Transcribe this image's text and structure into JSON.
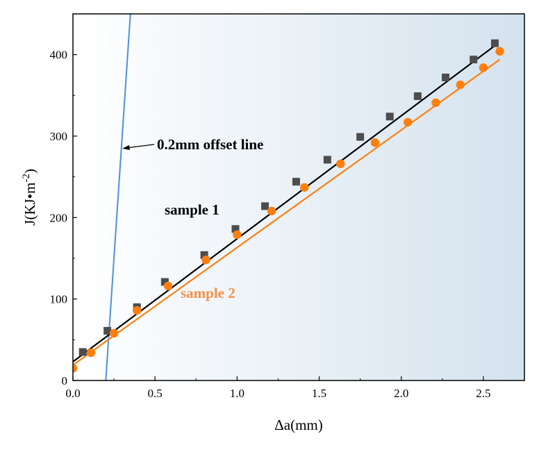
{
  "chart_data": {
    "type": "scatter",
    "xlabel": "Δa(mm)",
    "ylabel_base": "J(KJ•m",
    "ylabel_sup": "-2",
    "ylabel_tail": ")",
    "xlim": [
      0,
      2.75
    ],
    "ylim": [
      0,
      450
    ],
    "xticks": [
      0.0,
      0.5,
      1.0,
      1.5,
      2.0,
      2.5
    ],
    "xtick_labels": [
      "0.0",
      "0.5",
      "1.0",
      "1.5",
      "2.0",
      "2.5"
    ],
    "yticks": [
      0,
      100,
      200,
      300,
      400
    ],
    "ytick_labels": [
      "0",
      "100",
      "200",
      "300",
      "400"
    ],
    "grid": false,
    "background": "gradient white to light blue",
    "series": [
      {
        "name": "sample 1",
        "color": "#000000",
        "marker": "square",
        "marker_color": "#4d4d4d",
        "points": [
          [
            0.06,
            35
          ],
          [
            0.21,
            61
          ],
          [
            0.39,
            90
          ],
          [
            0.56,
            121
          ],
          [
            0.8,
            154
          ],
          [
            0.99,
            186
          ],
          [
            1.17,
            214
          ],
          [
            1.36,
            244
          ],
          [
            1.55,
            271
          ],
          [
            1.75,
            299
          ],
          [
            1.93,
            324
          ],
          [
            2.1,
            349
          ],
          [
            2.27,
            372
          ],
          [
            2.44,
            394
          ],
          [
            2.57,
            414
          ]
        ],
        "fit": [
          [
            0.0,
            23
          ],
          [
            2.57,
            411
          ]
        ]
      },
      {
        "name": "sample 2",
        "color": "#ff7f0e",
        "marker": "circle",
        "marker_color": "#ff7f0e",
        "points": [
          [
            0.0,
            15
          ],
          [
            0.11,
            34
          ],
          [
            0.25,
            58
          ],
          [
            0.39,
            86
          ],
          [
            0.58,
            116
          ],
          [
            0.81,
            148
          ],
          [
            1.0,
            179
          ],
          [
            1.21,
            208
          ],
          [
            1.41,
            237
          ],
          [
            1.63,
            266
          ],
          [
            1.84,
            292
          ],
          [
            2.04,
            317
          ],
          [
            2.21,
            341
          ],
          [
            2.36,
            363
          ],
          [
            2.5,
            384
          ],
          [
            2.6,
            404
          ]
        ],
        "fit": [
          [
            0.0,
            19
          ],
          [
            2.6,
            394
          ]
        ]
      }
    ],
    "offset_line": {
      "color": "#4a90e2",
      "points": [
        [
          0.2,
          0
        ],
        [
          0.35,
          450
        ]
      ]
    },
    "annotations": [
      {
        "text": "0.2mm offset line",
        "color": "#000000"
      },
      {
        "text": "sample 1",
        "color": "#000000"
      },
      {
        "text": "sample 2",
        "color": "#f5924a"
      }
    ]
  }
}
